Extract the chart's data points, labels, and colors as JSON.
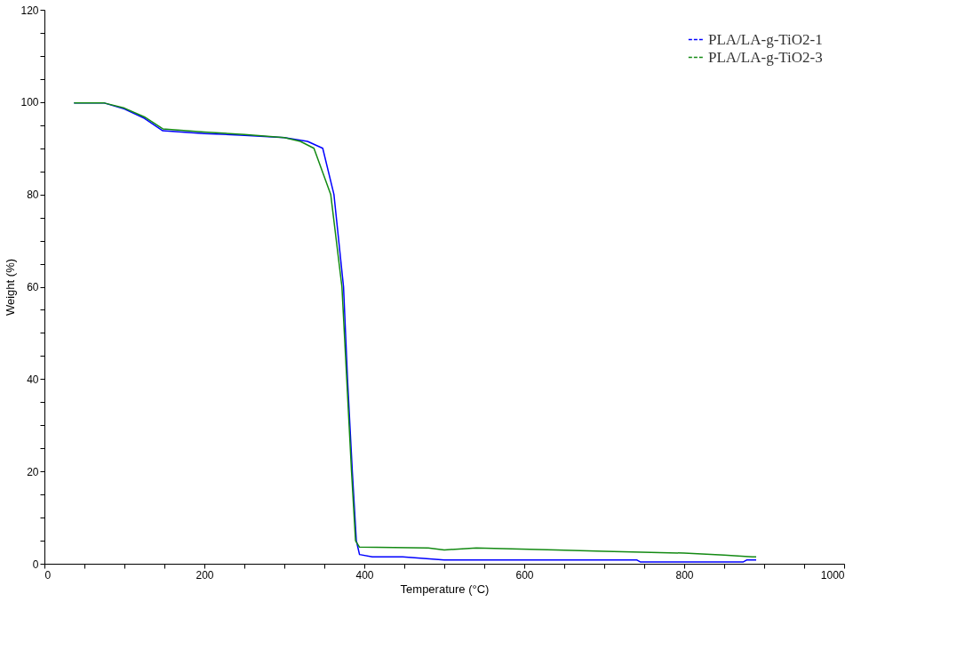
{
  "chart_data": {
    "type": "line",
    "xlabel": "Temperature (°C)",
    "ylabel": "Weight (%)",
    "xlim": [
      0,
      1000
    ],
    "ylim": [
      0,
      120
    ],
    "xticks": [
      0,
      {
        "value": 50,
        "label": null
      },
      {
        "value": 100,
        "label": null
      },
      {
        "value": 150,
        "label": null
      },
      200,
      {
        "value": 250,
        "label": null
      },
      {
        "value": 300,
        "label": null
      },
      {
        "value": 350,
        "label": null
      },
      400,
      {
        "value": 450,
        "label": null
      },
      {
        "value": 500,
        "label": null
      },
      {
        "value": 550,
        "label": null
      },
      600,
      {
        "value": 650,
        "label": null
      },
      {
        "value": 700,
        "label": null
      },
      {
        "value": 750,
        "label": null
      },
      800,
      {
        "value": 850,
        "label": null
      },
      {
        "value": 900,
        "label": null
      },
      {
        "value": 950,
        "label": null
      },
      1000
    ],
    "yticks": [
      0,
      {
        "value": 5,
        "label": null
      },
      {
        "value": 10,
        "label": null
      },
      {
        "value": 15,
        "label": null
      },
      20,
      {
        "value": 25,
        "label": null
      },
      {
        "value": 30,
        "label": null
      },
      {
        "value": 35,
        "label": null
      },
      40,
      {
        "value": 45,
        "label": null
      },
      {
        "value": 50,
        "label": null
      },
      {
        "value": 55,
        "label": null
      },
      60,
      {
        "value": 65,
        "label": null
      },
      {
        "value": 70,
        "label": null
      },
      {
        "value": 75,
        "label": null
      },
      80,
      {
        "value": 85,
        "label": null
      },
      {
        "value": 90,
        "label": null
      },
      {
        "value": 95,
        "label": null
      },
      100,
      {
        "value": 105,
        "label": null
      },
      {
        "value": 110,
        "label": null
      },
      {
        "value": 115,
        "label": null
      },
      120
    ],
    "grid": false,
    "legend": "top right",
    "marker": "none",
    "line_style": "solid",
    "series": [
      {
        "name": "PLA/LA-g-TiO2-1",
        "color": "#0000ff",
        "x": [
          37,
          75,
          100,
          125,
          148,
          200,
          250,
          300,
          329,
          348,
          362,
          374,
          379,
          385,
          390,
          394,
          410,
          448,
          500,
          600,
          741,
          745,
          874,
          878,
          890
        ],
        "values": [
          99.8,
          99.8,
          98.5,
          96.5,
          93.8,
          93.2,
          92.8,
          92.3,
          91.5,
          90,
          80,
          60,
          40,
          20,
          5,
          2,
          1.5,
          1.5,
          0.8,
          0.8,
          0.8,
          0.4,
          0.4,
          0.8,
          0.8
        ]
      },
      {
        "name": "PLA/LA-g-TiO2-3",
        "color": "#138a13",
        "x": [
          37,
          75,
          100,
          125,
          148,
          200,
          250,
          300,
          320,
          337,
          358,
          372,
          378,
          384,
          389,
          394,
          480,
          500,
          540,
          640,
          700,
          800,
          850,
          885,
          890
        ],
        "values": [
          99.8,
          99.8,
          98.7,
          96.8,
          94.2,
          93.5,
          93,
          92.3,
          91.5,
          90,
          80,
          60,
          40,
          20,
          5,
          3.6,
          3.4,
          3.0,
          3.4,
          3.0,
          2.7,
          2.3,
          1.9,
          1.5,
          1.5
        ]
      }
    ]
  }
}
